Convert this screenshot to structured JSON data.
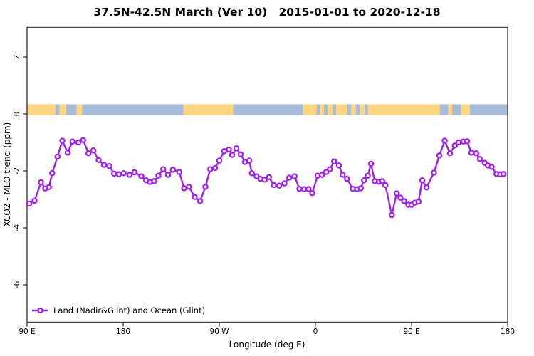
{
  "chart_data": {
    "type": "line",
    "title": "37.5N-42.5N March (Ver 10)   2015-01-01 to 2020-12-18",
    "xlabel": "Longitude (deg E)",
    "ylabel": "XCO2 - MLO trend (ppm)",
    "xlim": [
      90,
      540
    ],
    "ylim": [
      -7.3,
      3.05
    ],
    "grid": false,
    "legend_position": "bottom-left",
    "axis_note": "x axis wraps 450 degrees eastward: 90E to 180 to 90W to 0 to 90E to 180",
    "x_ticks": [
      {
        "pos": 90,
        "label": "90 E"
      },
      {
        "pos": 180,
        "label": "180"
      },
      {
        "pos": 270,
        "label": "90 W"
      },
      {
        "pos": 360,
        "label": "0"
      },
      {
        "pos": 450,
        "label": "90 E"
      },
      {
        "pos": 540,
        "label": "180"
      }
    ],
    "y_ticks": [
      {
        "pos": 2,
        "label": "2"
      },
      {
        "pos": 0,
        "label": "0"
      },
      {
        "pos": -2,
        "label": "-2"
      },
      {
        "pos": -4,
        "label": "-4"
      },
      {
        "pos": -6,
        "label": "-6"
      }
    ],
    "series": [
      {
        "name": "Land (Nadir&Glint) and Ocean (Glint)",
        "color": "#A020F0",
        "marker": "open-circle",
        "x": [
          92,
          97,
          103,
          107,
          110.5,
          113.5,
          118.5,
          123,
          128,
          132.5,
          138,
          142.5,
          147.5,
          152,
          157,
          162,
          167,
          171.5,
          176,
          180.5,
          186,
          190.5,
          197,
          201.5,
          205,
          209,
          213,
          217.5,
          222,
          226.5,
          232.5,
          237,
          241.5,
          247,
          252,
          257,
          261.5,
          266,
          270,
          274.5,
          279,
          282,
          286,
          290,
          294,
          298,
          300.5,
          305,
          308.5,
          312.5,
          316.5,
          321,
          326,
          331,
          335.5,
          340.5,
          345,
          349.5,
          353.5,
          357,
          362,
          366,
          370,
          373.5,
          377.5,
          382,
          385.5,
          389.5,
          395,
          399,
          402.5,
          405.5,
          409,
          412,
          415.5,
          419.5,
          422.5,
          425.5,
          431.5,
          436,
          439.5,
          443,
          447,
          450,
          453,
          456.5,
          460,
          464,
          471,
          476,
          481,
          486,
          490.5,
          494,
          498.5,
          502,
          506,
          510.5,
          514,
          518.5,
          521.5,
          525,
          529.5,
          533,
          536
        ],
        "y": [
          -3.15,
          -3.05,
          -2.4,
          -2.62,
          -2.57,
          -2.08,
          -1.5,
          -0.94,
          -1.36,
          -0.97,
          -1.0,
          -0.92,
          -1.38,
          -1.28,
          -1.62,
          -1.79,
          -1.83,
          -2.1,
          -2.12,
          -2.08,
          -2.14,
          -2.05,
          -2.19,
          -2.33,
          -2.39,
          -2.36,
          -2.17,
          -1.94,
          -2.14,
          -1.96,
          -2.04,
          -2.61,
          -2.56,
          -2.92,
          -3.06,
          -2.56,
          -1.94,
          -1.9,
          -1.64,
          -1.31,
          -1.25,
          -1.44,
          -1.21,
          -1.42,
          -1.69,
          -1.64,
          -2.08,
          -2.19,
          -2.28,
          -2.31,
          -2.22,
          -2.5,
          -2.52,
          -2.44,
          -2.24,
          -2.19,
          -2.63,
          -2.64,
          -2.64,
          -2.78,
          -2.17,
          -2.14,
          -2.04,
          -1.94,
          -1.67,
          -1.81,
          -2.14,
          -2.28,
          -2.63,
          -2.64,
          -2.61,
          -2.33,
          -2.17,
          -1.75,
          -2.36,
          -2.38,
          -2.36,
          -2.5,
          -3.55,
          -2.79,
          -2.94,
          -3.06,
          -3.19,
          -3.19,
          -3.12,
          -3.08,
          -2.33,
          -2.58,
          -2.06,
          -1.46,
          -0.94,
          -1.38,
          -1.11,
          -1.0,
          -0.97,
          -0.96,
          -1.36,
          -1.38,
          -1.58,
          -1.72,
          -1.81,
          -1.86,
          -2.11,
          -2.12,
          -2.11
        ]
      }
    ],
    "map_strip": {
      "description": "land/ocean mask band drawn near y=0.15",
      "value_top": 0.34,
      "value_bottom": -0.04,
      "land_color": "#FFD580",
      "ocean_color": "#A7BCD8",
      "segments": [
        [
          "land",
          90,
          116.5
        ],
        [
          "ocean",
          116.5,
          120.5
        ],
        [
          "land",
          120.5,
          126.5
        ],
        [
          "ocean",
          126.5,
          136.5
        ],
        [
          "land",
          136.5,
          141.5
        ],
        [
          "ocean",
          141.5,
          236.5
        ],
        [
          "land",
          236.5,
          283
        ],
        [
          "ocean",
          283,
          348
        ],
        [
          "land",
          348,
          361
        ],
        [
          "ocean",
          361,
          364.5
        ],
        [
          "land",
          364.5,
          368
        ],
        [
          "ocean",
          368,
          371.5
        ],
        [
          "land",
          371.5,
          376
        ],
        [
          "ocean",
          376,
          379.5
        ],
        [
          "land",
          379.5,
          390
        ],
        [
          "ocean",
          390,
          393.5
        ],
        [
          "land",
          393.5,
          398
        ],
        [
          "ocean",
          398,
          401.5
        ],
        [
          "land",
          401.5,
          406
        ],
        [
          "ocean",
          406,
          409
        ],
        [
          "land",
          409,
          476.5
        ],
        [
          "ocean",
          476.5,
          484.5
        ],
        [
          "land",
          484.5,
          488
        ],
        [
          "ocean",
          488,
          496.5
        ],
        [
          "land",
          496.5,
          504.5
        ],
        [
          "ocean",
          504.5,
          540
        ]
      ]
    },
    "colors": {
      "series": "#A020F0",
      "land": "#FFD580",
      "ocean": "#A7BCD8",
      "axis": "#404040",
      "background": "#FFFFFF"
    }
  },
  "legend": {
    "label": "Land (Nadir&Glint) and Ocean (Glint)"
  }
}
